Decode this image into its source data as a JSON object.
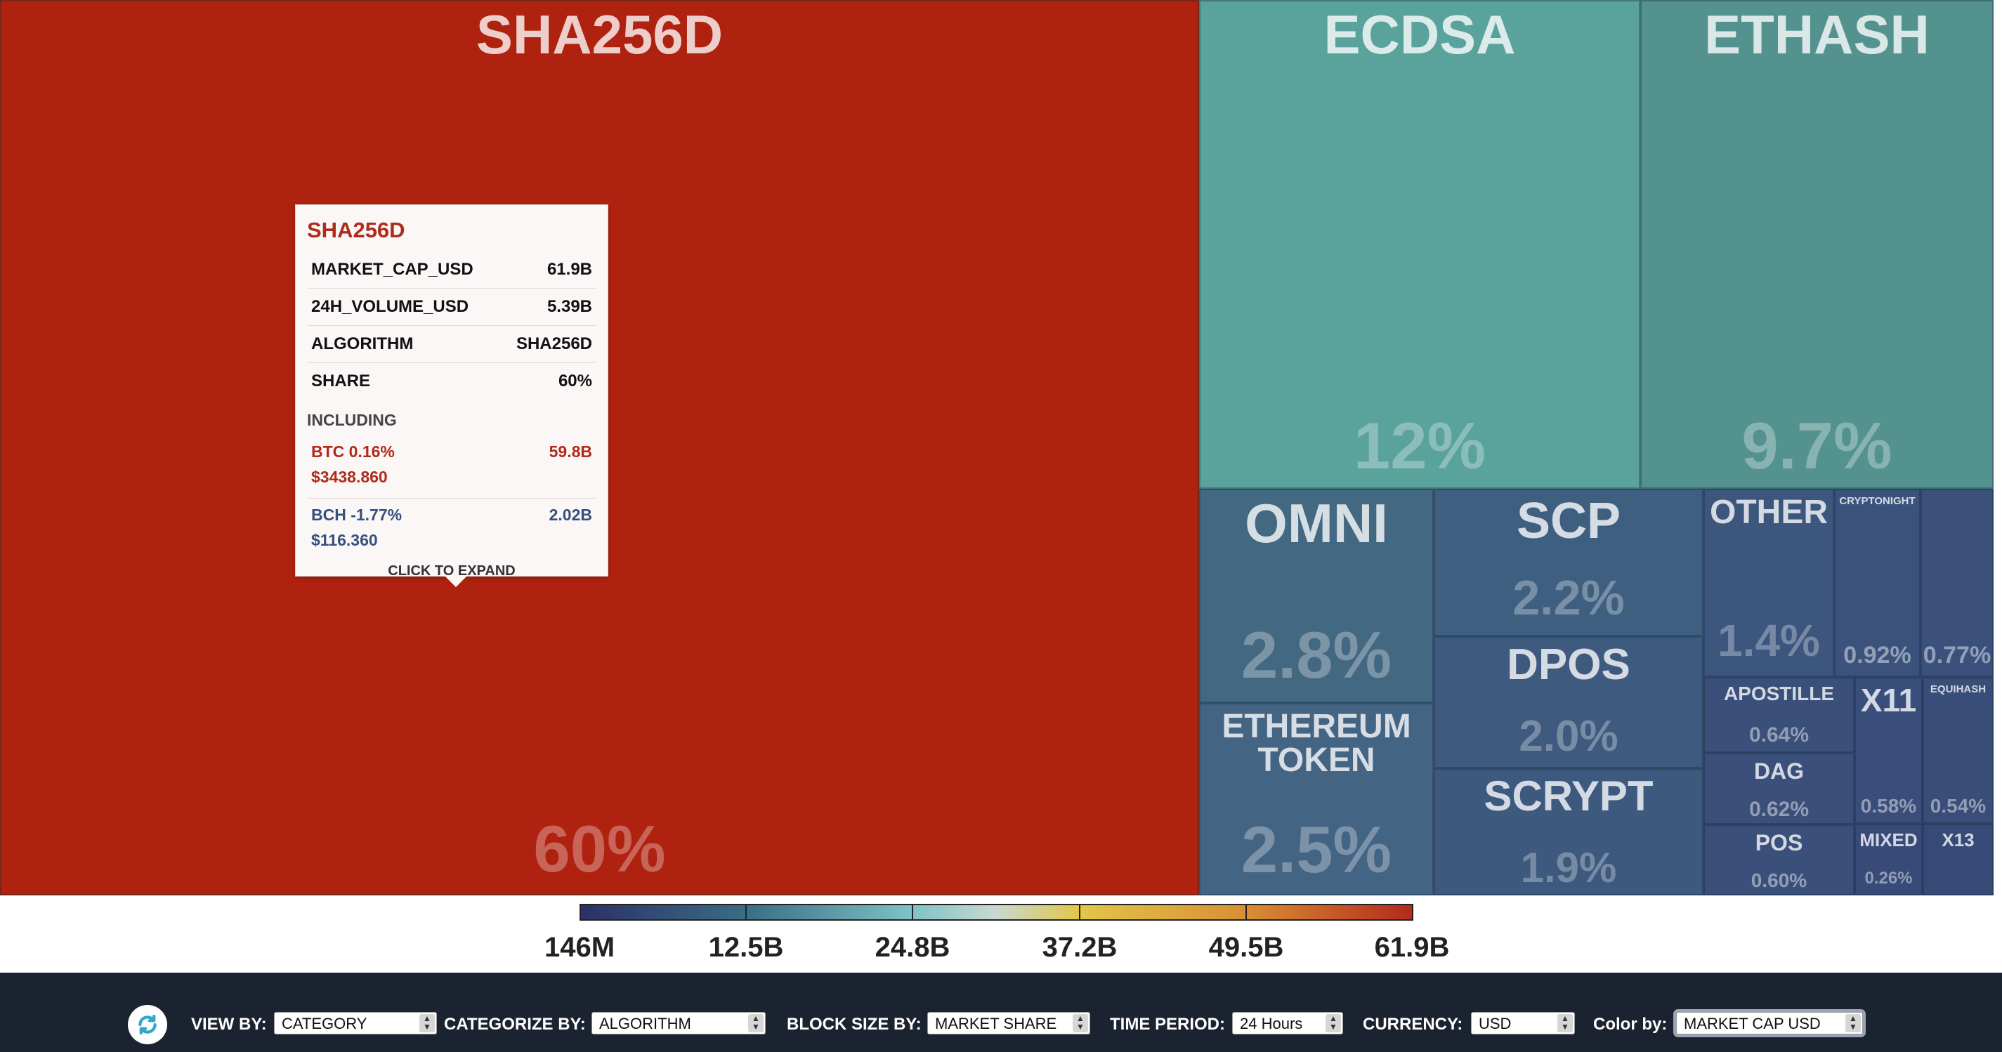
{
  "treemap": {
    "tiles": [
      {
        "id": "sha256d",
        "name": "SHA256D",
        "share": "60%",
        "color": "#b02210"
      },
      {
        "id": "ecdsa",
        "name": "ECDSA",
        "share": "12%",
        "color": "#5aa29c"
      },
      {
        "id": "ethash",
        "name": "ETHASH",
        "share": "9.7%",
        "color": "#54928f"
      },
      {
        "id": "omni",
        "name": "OMNI",
        "share": "2.8%",
        "color": "#436882"
      },
      {
        "id": "ethereum-token",
        "name": "ETHEREUM\nTOKEN",
        "share": "2.5%",
        "color": "#446483"
      },
      {
        "id": "scp",
        "name": "SCP",
        "share": "2.2%",
        "color": "#3f5f80"
      },
      {
        "id": "dpos",
        "name": "DPOS",
        "share": "2.0%",
        "color": "#3e5b7f"
      },
      {
        "id": "scrypt",
        "name": "SCRYPT",
        "share": "1.9%",
        "color": "#3e597e"
      },
      {
        "id": "other",
        "name": "OTHER",
        "share": "1.4%",
        "color": "#3d567e"
      },
      {
        "id": "cryptonight",
        "name": "CRYPTONIGHT",
        "share": "0.92%",
        "color": "#3b537c"
      },
      {
        "id": "unlabeled",
        "name": "",
        "share": "0.77%",
        "color": "#3b517b"
      },
      {
        "id": "apostille",
        "name": "APOSTILLE",
        "share": "0.64%",
        "color": "#3a4f7a"
      },
      {
        "id": "x11",
        "name": "X11",
        "share": "0.58%",
        "color": "#394e7a"
      },
      {
        "id": "equihash",
        "name": "EQUIHASH",
        "share": "0.54%",
        "color": "#394d79"
      },
      {
        "id": "dag",
        "name": "DAG",
        "share": "0.62%",
        "color": "#3a4f7a"
      },
      {
        "id": "pos",
        "name": "POS",
        "share": "0.60%",
        "color": "#3a4f7a"
      },
      {
        "id": "mixed",
        "name": "MIXED",
        "share": "0.26%",
        "color": "#384b78"
      },
      {
        "id": "x13",
        "name": "X13",
        "share": "",
        "color": "#374a77"
      }
    ]
  },
  "tooltip": {
    "title": "SHA256D",
    "rows": [
      {
        "key": "MARKET_CAP_USD",
        "value": "61.9B"
      },
      {
        "key": "24H_VOLUME_USD",
        "value": "5.39B"
      },
      {
        "key": "ALGORITHM",
        "value": "SHA256D"
      },
      {
        "key": "SHARE",
        "value": "60%"
      }
    ],
    "including_label": "INCLUDING",
    "coins": [
      {
        "name": "BTC 0.16%",
        "price": "$3438.860",
        "cap": "59.8B"
      },
      {
        "name": "BCH -1.77%",
        "price": "$116.360",
        "cap": "2.02B"
      }
    ],
    "expand_label": "CLICK TO EXPAND"
  },
  "legend": {
    "labels": [
      "146M",
      "12.5B",
      "24.8B",
      "37.2B",
      "49.5B",
      "61.9B"
    ]
  },
  "controls": {
    "view_by": {
      "label": "VIEW BY:",
      "value": "CATEGORY"
    },
    "categorize_by": {
      "label": "CATEGORIZE BY:",
      "value": "ALGORITHM"
    },
    "block_size_by": {
      "label": "BLOCK SIZE BY:",
      "value": "MARKET SHARE"
    },
    "time_period": {
      "label": "TIME PERIOD:",
      "value": "24 Hours"
    },
    "currency": {
      "label": "CURRENCY:",
      "value": "USD"
    },
    "color_by": {
      "label": "Color by:",
      "value": "MARKET CAP USD"
    }
  },
  "icons": {
    "refresh": "refresh-icon",
    "select_arrows": "updown-arrows-icon"
  }
}
